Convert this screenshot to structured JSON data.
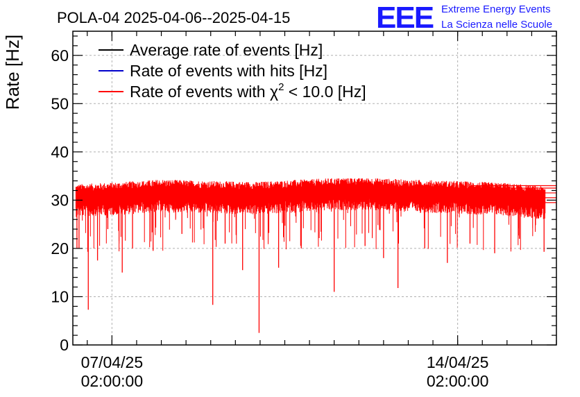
{
  "header": {
    "title": "POLA-04 2025-04-06--2025-04-15",
    "logo_letters": "EEE",
    "logo_line1": "Extreme Energy Events",
    "logo_line2": "La Scienza nelle Scuole"
  },
  "colors": {
    "average": "#000000",
    "hits": "#0000cc",
    "chi2": "#ff0000",
    "logo": "#1a1aff"
  },
  "chart_data": {
    "type": "line",
    "ylabel": "Rate [Hz]",
    "xlabel": "",
    "ylim": [
      0,
      65
    ],
    "yticks": [
      0,
      10,
      20,
      30,
      40,
      50,
      60
    ],
    "xlim": [
      "2025-04-06T07:00:00",
      "2025-04-16T02:00:00"
    ],
    "xticks": [
      {
        "date": "07/04/25",
        "time": "02:00:00",
        "value": "2025-04-07T02:00:00"
      },
      {
        "date": "14/04/25",
        "time": "02:00:00",
        "value": "2025-04-14T02:00:00"
      }
    ],
    "grid": true,
    "legend_position": "top-left",
    "legend": [
      {
        "key": "average",
        "pre": "Average rate of events [Hz]",
        "sup": "",
        "post": ""
      },
      {
        "key": "hits",
        "pre": "Rate of events with hits [Hz]",
        "sup": "",
        "post": ""
      },
      {
        "key": "chi2",
        "pre": "Rate of events with χ",
        "sup": "2",
        "post": " < 10.0 [Hz]"
      }
    ],
    "series": [
      {
        "name": "Rate of events with χ2 < 10.0 [Hz]",
        "color": "#ff0000",
        "x_start": "2025-04-06T08:30:00",
        "x_end": "2025-04-15T20:30:00",
        "baseline_points": [
          [
            "2025-04-06T08:30:00",
            30.5
          ],
          [
            "2025-04-07T08:00:00",
            31.0
          ],
          [
            "2025-04-08T02:00:00",
            31.5
          ],
          [
            "2025-04-09T00:00:00",
            31.2
          ],
          [
            "2025-04-10T00:00:00",
            31.0
          ],
          [
            "2025-04-11T00:00:00",
            31.5
          ],
          [
            "2025-04-12T00:00:00",
            32.0
          ],
          [
            "2025-04-13T00:00:00",
            31.5
          ],
          [
            "2025-04-14T00:00:00",
            31.2
          ],
          [
            "2025-04-15T00:00:00",
            30.8
          ],
          [
            "2025-04-15T20:30:00",
            30.0
          ]
        ],
        "dips": [
          [
            "2025-04-06T09:00:00",
            20.0
          ],
          [
            "2025-04-06T10:00:00",
            20.0
          ],
          [
            "2025-04-06T14:30:00",
            7.3
          ],
          [
            "2025-04-06T19:00:00",
            17.5
          ],
          [
            "2025-04-07T00:00:00",
            24.0
          ],
          [
            "2025-04-07T07:00:00",
            15.0
          ],
          [
            "2025-04-07T12:00:00",
            20.0
          ],
          [
            "2025-04-07T22:00:00",
            19.5
          ],
          [
            "2025-04-08T12:00:00",
            23.0
          ],
          [
            "2025-04-09T03:00:00",
            8.3
          ],
          [
            "2025-04-09T09:00:00",
            21.0
          ],
          [
            "2025-04-09T17:30:00",
            15.5
          ],
          [
            "2025-04-10T01:30:00",
            2.5
          ],
          [
            "2025-04-10T11:00:00",
            16.0
          ],
          [
            "2025-04-10T22:00:00",
            20.0
          ],
          [
            "2025-04-11T14:00:00",
            11.0
          ],
          [
            "2025-04-12T05:00:00",
            20.5
          ],
          [
            "2025-04-12T14:00:00",
            18.0
          ],
          [
            "2025-04-12T21:00:00",
            11.8
          ],
          [
            "2025-04-13T10:00:00",
            20.0
          ],
          [
            "2025-04-13T21:00:00",
            17.0
          ],
          [
            "2025-04-14T08:00:00",
            21.0
          ],
          [
            "2025-04-14T20:00:00",
            19.0
          ],
          [
            "2025-04-15T08:00:00",
            22.0
          ],
          [
            "2025-04-15T20:00:00",
            19.3
          ]
        ],
        "peak_max": 34.5
      }
    ],
    "trailing_lines": [
      33.0,
      32.5,
      31.5,
      30.5,
      29.5
    ]
  }
}
